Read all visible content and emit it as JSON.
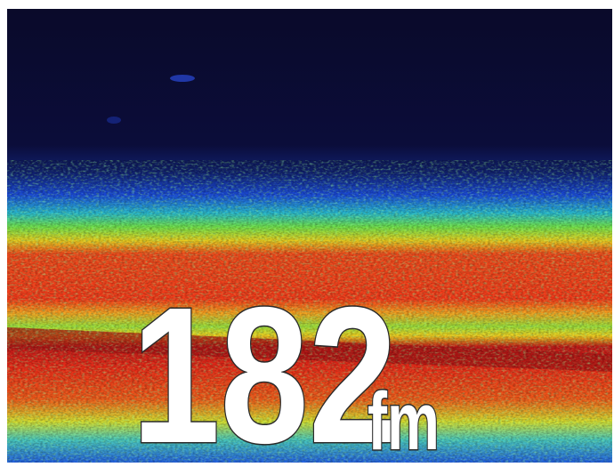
{
  "display": {
    "depth": 182,
    "unit": "fm"
  }
}
